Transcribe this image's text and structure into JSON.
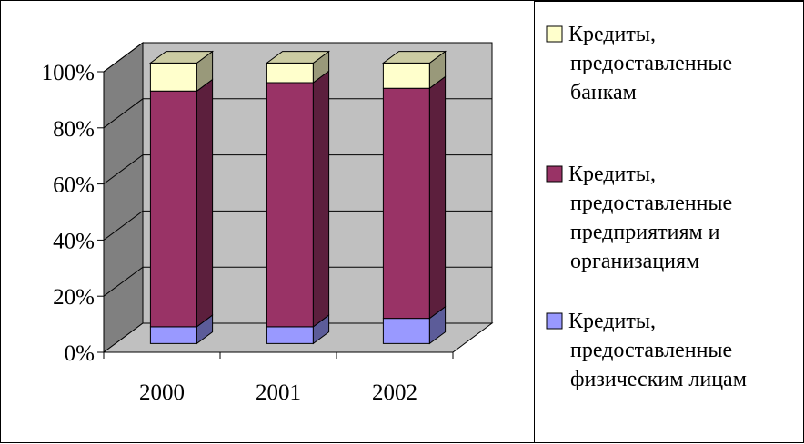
{
  "chart_data": {
    "type": "bar",
    "stacked": true,
    "percent": true,
    "three_d": true,
    "categories": [
      "2000",
      "2001",
      "2002"
    ],
    "series": [
      {
        "name": [
          "Кредиты,",
          "предоставленные",
          "физическим лицам"
        ],
        "values": [
          6,
          6,
          9
        ],
        "color": "#9999ff"
      },
      {
        "name": [
          "Кредиты,",
          "предоставленные",
          "предприятиям и",
          "организациям"
        ],
        "values": [
          84,
          87,
          82
        ],
        "color": "#993366"
      },
      {
        "name": [
          "Кредиты,",
          "предоставленные",
          "банкам"
        ],
        "values": [
          10,
          7,
          9
        ],
        "color": "#ffffcc"
      }
    ],
    "y_ticks": [
      "0%",
      "20%",
      "40%",
      "60%",
      "80%",
      "100%"
    ],
    "ylim": [
      0,
      100
    ],
    "grid": true,
    "legend_position": "right",
    "wall_color": "#c0c0c0",
    "side_wall_color": "#808080",
    "floor_color": "#c0c0c0"
  }
}
